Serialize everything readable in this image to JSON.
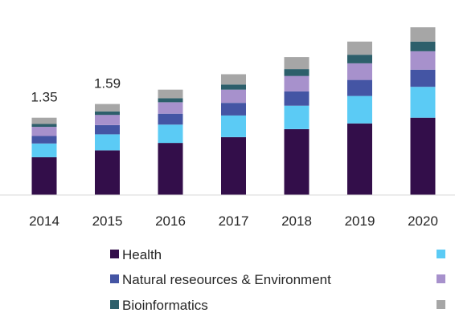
{
  "chart_data": {
    "type": "bar",
    "stacked": true,
    "title": "",
    "xlabel": "",
    "ylabel": "",
    "ylim": [
      0,
      3.0
    ],
    "grid": false,
    "legend_position": "bottom",
    "categories": [
      "2014",
      "2015",
      "2016",
      "2017",
      "2018",
      "2019",
      "2020"
    ],
    "series": [
      {
        "name": "Health",
        "color": "#330e4a",
        "values": [
          0.66,
          0.78,
          0.91,
          1.01,
          1.15,
          1.25,
          1.35
        ]
      },
      {
        "name": "",
        "color": "#5bcbf5",
        "values": [
          0.24,
          0.28,
          0.32,
          0.38,
          0.41,
          0.48,
          0.54
        ]
      },
      {
        "name": "Natural reseources & Environment",
        "color": "#4455a4",
        "values": [
          0.13,
          0.16,
          0.19,
          0.22,
          0.25,
          0.28,
          0.3
        ]
      },
      {
        "name": "",
        "color": "#a791cc",
        "values": [
          0.16,
          0.18,
          0.2,
          0.23,
          0.27,
          0.29,
          0.32
        ]
      },
      {
        "name": "Bioinformatics",
        "color": "#2d5f6b",
        "values": [
          0.05,
          0.06,
          0.07,
          0.09,
          0.12,
          0.15,
          0.17
        ]
      },
      {
        "name": "",
        "color": "#a6a6a6",
        "values": [
          0.11,
          0.13,
          0.15,
          0.18,
          0.21,
          0.23,
          0.25
        ]
      }
    ],
    "data_labels": [
      {
        "category": "2014",
        "text": "1.35"
      },
      {
        "category": "2015",
        "text": "1.59"
      }
    ]
  }
}
